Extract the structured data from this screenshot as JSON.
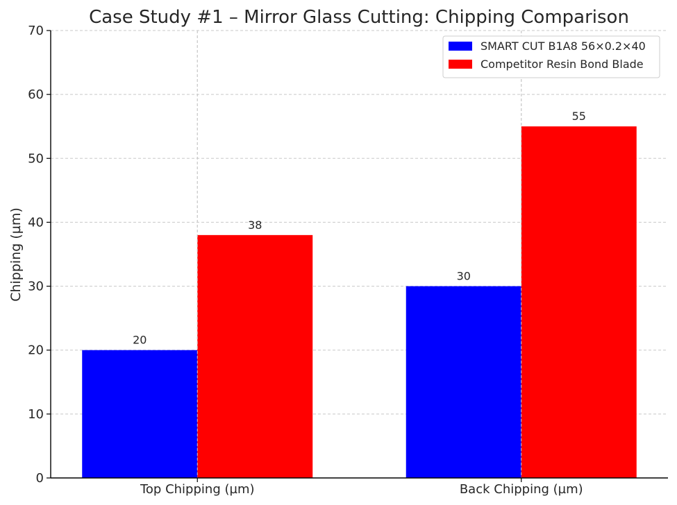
{
  "chart_data": {
    "type": "bar",
    "title": "Case Study #1 – Mirror Glass Cutting: Chipping Comparison",
    "xlabel": "",
    "ylabel": "Chipping (µm)",
    "categories": [
      "Top Chipping (µm)",
      "Back Chipping (µm)"
    ],
    "series": [
      {
        "name": "SMART CUT B1A8 56×0.2×40",
        "values": [
          20,
          30
        ],
        "color": "#0000ff"
      },
      {
        "name": "Competitor Resin Bond Blade",
        "values": [
          38,
          55
        ],
        "color": "#ff0000"
      }
    ],
    "ylim": [
      0,
      70
    ],
    "yticks": [
      0,
      10,
      20,
      30,
      40,
      50,
      60,
      70
    ],
    "grid": true,
    "legend_position": "top-right",
    "data_labels": true
  }
}
